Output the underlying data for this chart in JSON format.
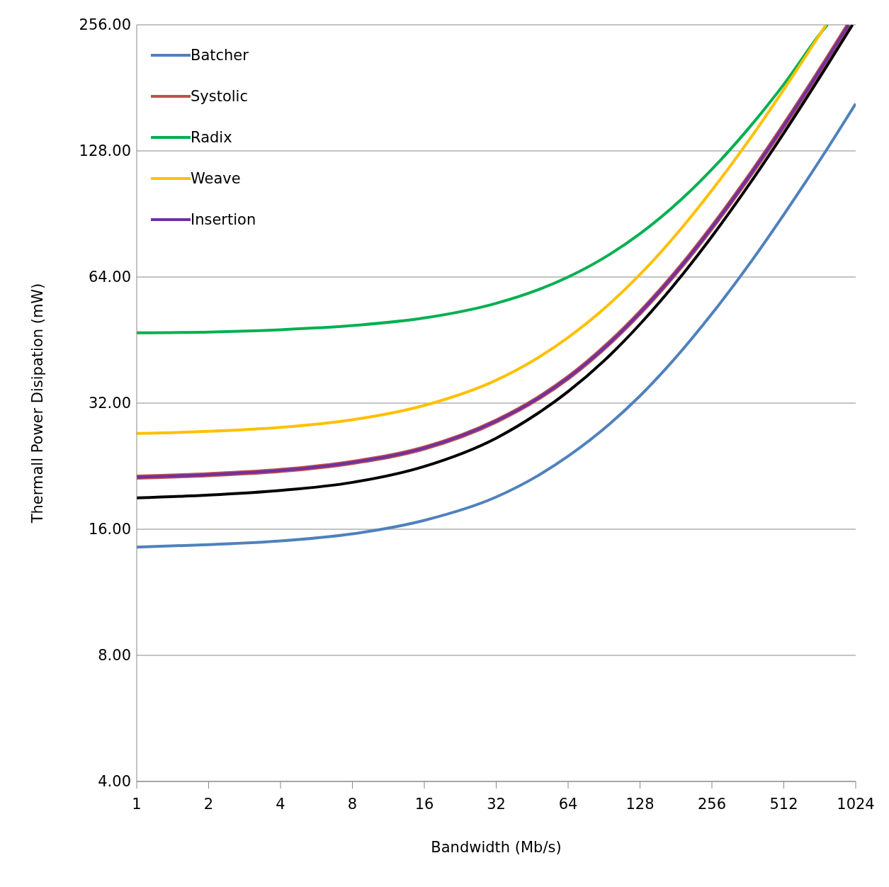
{
  "chart_data": {
    "type": "line",
    "xlabel": "Bandwidth (Mb/s)",
    "ylabel": "Thermall Power Disipation (mW)",
    "log": "xy",
    "grid": "y",
    "legend": "top left",
    "marker": "none",
    "line_style": "solid",
    "xlim": [
      1,
      1024
    ],
    "xticks": [
      1,
      2,
      4,
      8,
      16,
      32,
      64,
      128,
      256,
      512,
      1024
    ],
    "ylim": [
      4,
      256
    ],
    "yticks": [
      {
        "value": 4,
        "label": "4.00"
      },
      {
        "value": 8,
        "label": "8.00"
      },
      {
        "value": 16,
        "label": "16.00"
      },
      {
        "value": 32,
        "label": "32.00"
      },
      {
        "value": 64,
        "label": "64.00"
      },
      {
        "value": 128,
        "label": "128.00"
      },
      {
        "value": 256,
        "label": "256.00"
      }
    ],
    "series": [
      {
        "name": "Batcher",
        "color": "#4f81bd",
        "x": [
          1,
          2,
          4,
          8,
          16,
          32,
          48,
          64,
          96,
          128,
          192,
          256,
          384,
          512,
          768,
          1024
        ],
        "values": [
          14.5,
          14.7,
          15.0,
          15.6,
          16.8,
          19.1,
          21.5,
          23.9,
          28.6,
          33.3,
          42.8,
          52.3,
          71.2,
          90.2,
          128,
          166
        ]
      },
      {
        "name": "Systolic",
        "color": "#c0504d",
        "x": [
          1,
          2,
          4,
          8,
          16,
          32,
          48,
          64,
          96,
          128,
          192,
          256,
          384,
          512,
          768,
          955
        ],
        "values": [
          21.3,
          21.6,
          22.1,
          23.1,
          25.0,
          29.0,
          32.9,
          36.8,
          44.7,
          52.6,
          68.3,
          84.1,
          115.6,
          147.1,
          210,
          256
        ]
      },
      {
        "name": "Radix",
        "color": "#00b050",
        "x": [
          1,
          2,
          4,
          8,
          16,
          32,
          48,
          64,
          96,
          128,
          192,
          256,
          384,
          512,
          768,
          780
        ],
        "values": [
          47.1,
          47.3,
          47.9,
          49.0,
          51.1,
          55.4,
          59.7,
          64.0,
          72.6,
          81.2,
          98.4,
          115.7,
          150.1,
          184.5,
          253.4,
          256
        ]
      },
      {
        "name": "Weave",
        "color": "#ffc000",
        "x": [
          1,
          2,
          4,
          8,
          16,
          32,
          48,
          64,
          96,
          128,
          192,
          256,
          384,
          512,
          769
        ],
        "values": [
          27.1,
          27.4,
          28.0,
          29.2,
          31.6,
          36.3,
          41.1,
          45.9,
          55.4,
          64.9,
          84.0,
          103.1,
          141.2,
          179.4,
          256
        ]
      },
      {
        "color": "#000000",
        "x": [
          1,
          2,
          4,
          8,
          16,
          32,
          48,
          64,
          96,
          128,
          192,
          256,
          384,
          512,
          768,
          993
        ],
        "values": [
          19.0,
          19.3,
          19.8,
          20.7,
          22.6,
          26.4,
          30.3,
          34.1,
          41.7,
          49.4,
          64.7,
          80.0,
          110.6,
          141.2,
          202.4,
          256
        ]
      },
      {
        "name": "Insertion",
        "color": "#7030a0",
        "x": [
          1,
          2,
          4,
          8,
          16,
          32,
          48,
          64,
          96,
          128,
          192,
          256,
          384,
          512,
          768,
          955
        ],
        "values": [
          21.3,
          21.6,
          22.1,
          23.1,
          25.0,
          29.0,
          32.9,
          36.8,
          44.7,
          52.6,
          68.3,
          84.1,
          115.6,
          147.1,
          210,
          256
        ]
      }
    ]
  }
}
